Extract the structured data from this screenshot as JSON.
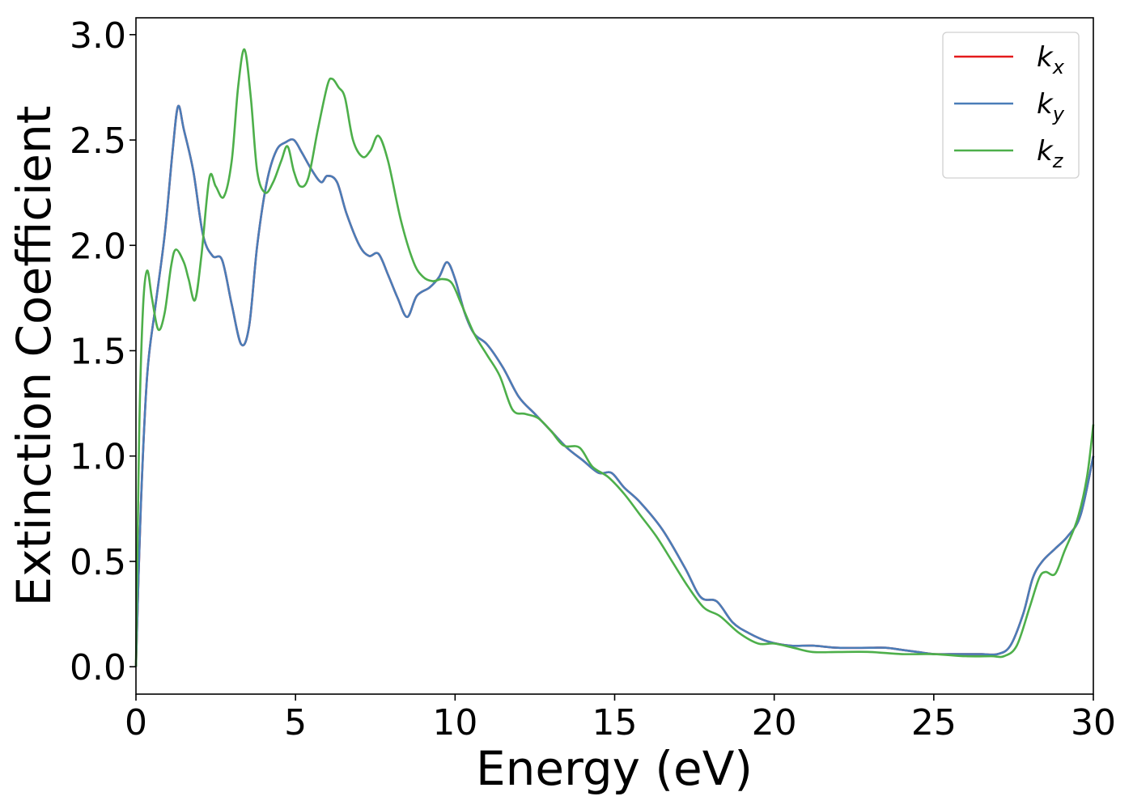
{
  "chart_data": {
    "type": "line",
    "title": "",
    "xlabel": "Energy (eV)",
    "ylabel": "Extinction Coefficient",
    "xlim": [
      0,
      30
    ],
    "ylim": [
      -0.13,
      3.08
    ],
    "xticks": [
      0,
      5,
      10,
      15,
      20,
      25,
      30
    ],
    "xtick_labels": [
      "0",
      "5",
      "10",
      "15",
      "20",
      "25",
      "30"
    ],
    "yticks": [
      0.0,
      0.5,
      1.0,
      1.5,
      2.0,
      2.5,
      3.0
    ],
    "ytick_labels": [
      "0.0",
      "0.5",
      "1.0",
      "1.5",
      "2.0",
      "2.5",
      "3.0"
    ],
    "grid": false,
    "legend_position": "top-right",
    "series": [
      {
        "name": "k",
        "subscript": "x",
        "color": "#e41a1c",
        "x": [
          0,
          0.15,
          0.35,
          0.6,
          0.9,
          1.15,
          1.32,
          1.5,
          1.8,
          2.1,
          2.4,
          2.7,
          3.0,
          3.3,
          3.55,
          3.8,
          4.1,
          4.4,
          4.7,
          4.95,
          5.2,
          5.5,
          5.8,
          6.0,
          6.3,
          6.6,
          7.0,
          7.3,
          7.6,
          7.9,
          8.2,
          8.5,
          8.8,
          9.2,
          9.5,
          9.75,
          10.0,
          10.3,
          10.6,
          11.0,
          11.5,
          12.0,
          12.5,
          13.0,
          13.5,
          14.0,
          14.5,
          14.9,
          15.3,
          15.8,
          16.5,
          17.2,
          17.7,
          18.2,
          18.7,
          19.2,
          19.8,
          20.5,
          21.2,
          22.0,
          23.0,
          23.5,
          24.0,
          24.5,
          25.0,
          25.5,
          26.0,
          26.5,
          27.0,
          27.4,
          27.8,
          28.1,
          28.4,
          28.8,
          29.2,
          29.6,
          30.0
        ],
        "y": [
          0.0,
          0.75,
          1.38,
          1.7,
          2.05,
          2.45,
          2.66,
          2.55,
          2.35,
          2.05,
          1.95,
          1.93,
          1.72,
          1.53,
          1.62,
          2.0,
          2.3,
          2.45,
          2.49,
          2.5,
          2.44,
          2.36,
          2.3,
          2.33,
          2.3,
          2.15,
          2.0,
          1.95,
          1.96,
          1.86,
          1.75,
          1.66,
          1.76,
          1.8,
          1.85,
          1.92,
          1.84,
          1.68,
          1.58,
          1.53,
          1.42,
          1.28,
          1.2,
          1.12,
          1.04,
          0.98,
          0.92,
          0.92,
          0.85,
          0.78,
          0.65,
          0.47,
          0.33,
          0.31,
          0.21,
          0.16,
          0.12,
          0.1,
          0.1,
          0.09,
          0.09,
          0.09,
          0.08,
          0.07,
          0.06,
          0.06,
          0.06,
          0.06,
          0.06,
          0.1,
          0.25,
          0.42,
          0.5,
          0.56,
          0.62,
          0.72,
          1.0
        ]
      },
      {
        "name": "k",
        "subscript": "y",
        "color": "#4a7db8",
        "x": [
          0,
          0.15,
          0.35,
          0.6,
          0.9,
          1.15,
          1.32,
          1.5,
          1.8,
          2.1,
          2.4,
          2.7,
          3.0,
          3.3,
          3.55,
          3.8,
          4.1,
          4.4,
          4.7,
          4.95,
          5.2,
          5.5,
          5.8,
          6.0,
          6.3,
          6.6,
          7.0,
          7.3,
          7.6,
          7.9,
          8.2,
          8.5,
          8.8,
          9.2,
          9.5,
          9.75,
          10.0,
          10.3,
          10.6,
          11.0,
          11.5,
          12.0,
          12.5,
          13.0,
          13.5,
          14.0,
          14.5,
          14.9,
          15.3,
          15.8,
          16.5,
          17.2,
          17.7,
          18.2,
          18.7,
          19.2,
          19.8,
          20.5,
          21.2,
          22.0,
          23.0,
          23.5,
          24.0,
          24.5,
          25.0,
          25.5,
          26.0,
          26.5,
          27.0,
          27.4,
          27.8,
          28.1,
          28.4,
          28.8,
          29.2,
          29.6,
          30.0
        ],
        "y": [
          0.0,
          0.75,
          1.38,
          1.7,
          2.05,
          2.45,
          2.66,
          2.55,
          2.35,
          2.05,
          1.95,
          1.93,
          1.72,
          1.53,
          1.62,
          2.0,
          2.3,
          2.45,
          2.49,
          2.5,
          2.44,
          2.36,
          2.3,
          2.33,
          2.3,
          2.15,
          2.0,
          1.95,
          1.96,
          1.86,
          1.75,
          1.66,
          1.76,
          1.8,
          1.85,
          1.92,
          1.84,
          1.68,
          1.58,
          1.53,
          1.42,
          1.28,
          1.2,
          1.12,
          1.04,
          0.98,
          0.92,
          0.92,
          0.85,
          0.78,
          0.65,
          0.47,
          0.33,
          0.31,
          0.21,
          0.16,
          0.12,
          0.1,
          0.1,
          0.09,
          0.09,
          0.09,
          0.08,
          0.07,
          0.06,
          0.06,
          0.06,
          0.06,
          0.06,
          0.1,
          0.25,
          0.42,
          0.5,
          0.56,
          0.62,
          0.72,
          1.0
        ]
      },
      {
        "name": "k",
        "subscript": "z",
        "color": "#4daf4a",
        "x": [
          0,
          0.1,
          0.22,
          0.35,
          0.5,
          0.7,
          0.9,
          1.1,
          1.25,
          1.5,
          1.65,
          1.85,
          2.05,
          2.3,
          2.5,
          2.75,
          3.0,
          3.2,
          3.4,
          3.6,
          3.8,
          4.05,
          4.3,
          4.55,
          4.75,
          4.95,
          5.15,
          5.4,
          5.7,
          6.0,
          6.15,
          6.35,
          6.55,
          6.8,
          7.1,
          7.35,
          7.6,
          7.9,
          8.3,
          8.7,
          9.0,
          9.3,
          9.6,
          9.9,
          10.2,
          10.6,
          11.0,
          11.4,
          11.8,
          12.2,
          12.6,
          13.0,
          13.4,
          13.9,
          14.3,
          14.8,
          15.3,
          15.8,
          16.3,
          16.8,
          17.3,
          17.8,
          18.3,
          18.9,
          19.5,
          20.0,
          20.6,
          21.2,
          22.0,
          23.0,
          24.0,
          25.0,
          26.0,
          26.8,
          27.2,
          27.6,
          28.0,
          28.3,
          28.5,
          28.8,
          29.1,
          29.5,
          29.8,
          30.0
        ],
        "y": [
          0.0,
          1.1,
          1.7,
          1.88,
          1.75,
          1.6,
          1.68,
          1.9,
          1.98,
          1.92,
          1.84,
          1.74,
          1.95,
          2.32,
          2.28,
          2.23,
          2.4,
          2.75,
          2.93,
          2.7,
          2.35,
          2.25,
          2.3,
          2.4,
          2.47,
          2.35,
          2.28,
          2.32,
          2.55,
          2.76,
          2.79,
          2.75,
          2.7,
          2.5,
          2.42,
          2.45,
          2.52,
          2.4,
          2.12,
          1.92,
          1.85,
          1.83,
          1.84,
          1.82,
          1.72,
          1.58,
          1.48,
          1.38,
          1.22,
          1.2,
          1.18,
          1.12,
          1.05,
          1.04,
          0.95,
          0.9,
          0.82,
          0.72,
          0.62,
          0.5,
          0.38,
          0.28,
          0.24,
          0.16,
          0.11,
          0.11,
          0.09,
          0.07,
          0.07,
          0.07,
          0.06,
          0.06,
          0.05,
          0.05,
          0.05,
          0.1,
          0.28,
          0.42,
          0.45,
          0.44,
          0.55,
          0.7,
          0.9,
          1.15
        ]
      }
    ]
  }
}
